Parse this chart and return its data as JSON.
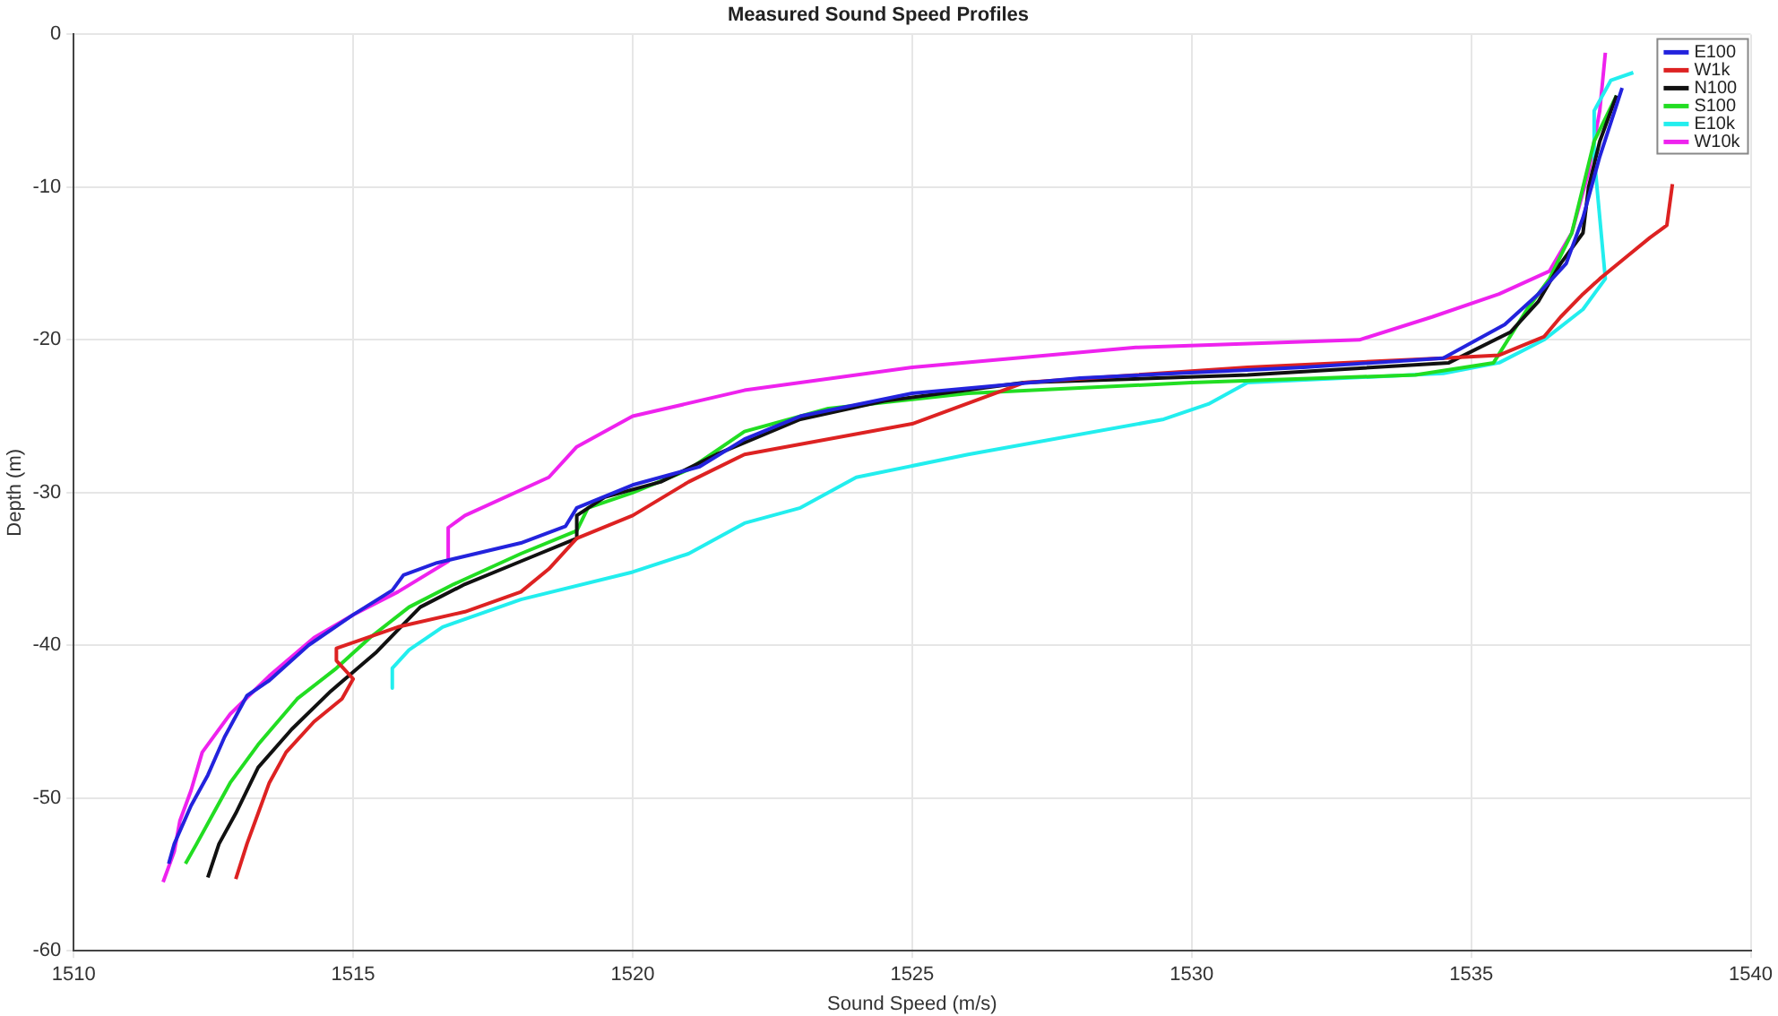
{
  "chart_data": {
    "type": "line",
    "title": "Measured Sound Speed Profiles",
    "xlabel": "Sound Speed (m/s)",
    "ylabel": "Depth (m)",
    "xlim": [
      1510,
      1540
    ],
    "xticks": [
      1510,
      1515,
      1520,
      1525,
      1530,
      1535,
      1540
    ],
    "ylim": [
      -60,
      0
    ],
    "yticks": [
      -60,
      -50,
      -40,
      -30,
      -20,
      -10,
      0
    ],
    "grid": true,
    "legend": "top right",
    "marker": "none",
    "line_style": "solid",
    "series": [
      {
        "name": "E100",
        "color": "#2323dd",
        "x": [
          1537.7,
          1537.3,
          1537.0,
          1536.7,
          1536.2,
          1535.6,
          1534.5,
          1532,
          1528,
          1525,
          1523,
          1522,
          1521.2,
          1520,
          1519,
          1518.8,
          1518,
          1516.5,
          1515.9,
          1515.7,
          1515,
          1514.2,
          1513.5,
          1513.1,
          1512.7,
          1512.4,
          1512.1,
          1511.8,
          1511.7
        ],
        "values": [
          -3.5,
          -8,
          -12,
          -15,
          -17,
          -19,
          -21.2,
          -21.8,
          -22.5,
          -23.5,
          -25,
          -26.5,
          -28.3,
          -29.5,
          -31,
          -32.2,
          -33.3,
          -34.6,
          -35.4,
          -36.4,
          -38,
          -40,
          -42.3,
          -43.3,
          -46,
          -48.5,
          -50.5,
          -53,
          -54.3
        ]
      },
      {
        "name": "W1k",
        "color": "#dd2222",
        "x": [
          1538.6,
          1538.5,
          1538.2,
          1537.8,
          1537.3,
          1537,
          1536.6,
          1536.3,
          1535.5,
          1534.5,
          1531,
          1527,
          1525,
          1522,
          1521,
          1520,
          1519,
          1518.5,
          1518,
          1517,
          1515.8,
          1514.7,
          1514.7,
          1515,
          1514.8,
          1514.3,
          1513.8,
          1513.5,
          1513.3,
          1513.1,
          1512.9
        ],
        "values": [
          -9.8,
          -12.5,
          -13.3,
          -14.5,
          -16,
          -17,
          -18.5,
          -19.8,
          -21,
          -21.2,
          -21.8,
          -22.8,
          -25.5,
          -27.5,
          -29.3,
          -31.5,
          -33,
          -35,
          -36.5,
          -37.8,
          -38.8,
          -40.2,
          -41,
          -42.2,
          -43.5,
          -45,
          -47,
          -49,
          -51,
          -53,
          -55.3
        ]
      },
      {
        "name": "N100",
        "color": "#111111",
        "x": [
          1537.6,
          1537.3,
          1537.1,
          1537,
          1536.6,
          1536.2,
          1535.7,
          1534.6,
          1531,
          1527,
          1524.5,
          1523,
          1521.5,
          1520.5,
          1519.5,
          1519,
          1519,
          1518,
          1517,
          1516.2,
          1515.8,
          1515.4,
          1514.6,
          1513.9,
          1513.3,
          1512.9,
          1512.6,
          1512.4
        ],
        "values": [
          -4,
          -7,
          -10,
          -13,
          -15,
          -17.5,
          -19.5,
          -21.5,
          -22.3,
          -22.8,
          -24,
          -25.2,
          -27.5,
          -29.3,
          -30.3,
          -31.5,
          -33,
          -34.5,
          -36,
          -37.5,
          -39,
          -40.5,
          -43,
          -45.5,
          -48,
          -51,
          -53,
          -55.2
        ]
      },
      {
        "name": "S100",
        "color": "#22dd22",
        "x": [
          1537.6,
          1537.2,
          1537,
          1536.8,
          1536.4,
          1536,
          1535.4,
          1534,
          1530,
          1526,
          1523.5,
          1522,
          1521,
          1520,
          1519.2,
          1519,
          1518,
          1516.8,
          1516,
          1515.3,
          1514.7,
          1514,
          1513.3,
          1512.8,
          1512.5,
          1512.2,
          1512
        ],
        "values": [
          -4,
          -7,
          -10,
          -13,
          -16,
          -18,
          -21.5,
          -22.3,
          -22.8,
          -23.5,
          -24.5,
          -26,
          -28.5,
          -30,
          -31,
          -32.5,
          -34,
          -36,
          -37.5,
          -39.5,
          -41.5,
          -43.5,
          -46.5,
          -49,
          -51,
          -53,
          -54.3
        ]
      },
      {
        "name": "E10k",
        "color": "#22eeee",
        "x": [
          1537.9,
          1537.5,
          1537.2,
          1537.2,
          1537.3,
          1537.4,
          1537.0,
          1536.3,
          1535.5,
          1534.5,
          1531,
          1530.3,
          1529.5,
          1526,
          1524,
          1523,
          1522,
          1521,
          1520,
          1518,
          1516.6,
          1516,
          1515.7,
          1515.7
        ],
        "values": [
          -2.5,
          -3,
          -5,
          -8,
          -12,
          -16,
          -18,
          -20,
          -21.5,
          -22.2,
          -22.8,
          -24.2,
          -25.2,
          -27.5,
          -29,
          -31,
          -32,
          -34,
          -35.2,
          -37,
          -38.8,
          -40.3,
          -41.5,
          -42.8
        ]
      },
      {
        "name": "W10k",
        "color": "#ee22ee",
        "x": [
          1537.4,
          1537.3,
          1537.1,
          1536.8,
          1536.4,
          1535.5,
          1534.3,
          1533,
          1529,
          1525,
          1522,
          1520,
          1519,
          1518.5,
          1517,
          1516.7,
          1516.7,
          1515.8,
          1515,
          1514.3,
          1513.5,
          1512.8,
          1512.3,
          1512.1,
          1511.9,
          1511.8,
          1511.6
        ],
        "values": [
          -1.2,
          -5,
          -9,
          -13,
          -15.5,
          -17,
          -18.5,
          -20,
          -20.5,
          -21.8,
          -23.3,
          -25,
          -27,
          -29,
          -31.5,
          -32.3,
          -34.5,
          -36.5,
          -38,
          -39.5,
          -42,
          -44.5,
          -47,
          -49.5,
          -51.5,
          -53.5,
          -55.5
        ]
      }
    ]
  }
}
